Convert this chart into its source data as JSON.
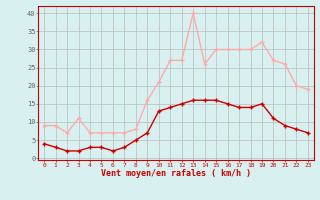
{
  "x": [
    0,
    1,
    2,
    3,
    4,
    5,
    6,
    7,
    8,
    9,
    10,
    11,
    12,
    13,
    14,
    15,
    16,
    17,
    18,
    19,
    20,
    21,
    22,
    23
  ],
  "wind_avg": [
    4,
    3,
    2,
    2,
    3,
    3,
    2,
    3,
    5,
    7,
    13,
    14,
    15,
    16,
    16,
    16,
    15,
    14,
    14,
    15,
    11,
    9,
    8,
    7
  ],
  "wind_gust": [
    9,
    9,
    7,
    11,
    7,
    7,
    7,
    7,
    8,
    16,
    21,
    27,
    27,
    40,
    26,
    30,
    30,
    30,
    30,
    32,
    27,
    26,
    20,
    19
  ],
  "avg_color": "#cc0000",
  "gust_color": "#ffaaaa",
  "bg_color": "#d8f0f0",
  "grid_color": "#bbbbbb",
  "xlabel": "Vent moyen/en rafales ( km/h )",
  "xlabel_color": "#cc0000",
  "yticks": [
    0,
    5,
    10,
    15,
    20,
    25,
    30,
    35,
    40
  ],
  "ylim": [
    -0.5,
    42
  ],
  "xlim": [
    -0.5,
    23.5
  ],
  "linewidth": 1.0,
  "markersize": 3.5,
  "markeredgewidth": 1.0
}
